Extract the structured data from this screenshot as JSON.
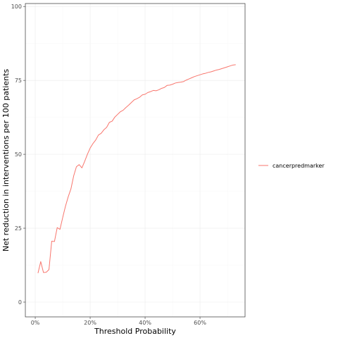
{
  "chart_data": {
    "type": "line",
    "title": "",
    "xlabel": "Threshold Probability",
    "ylabel": "Net reduction in interventions per 100 patients",
    "xlim": [
      -0.036,
      0.764
    ],
    "ylim": [
      -5,
      101
    ],
    "x_ticks": [
      {
        "value": 0.0,
        "label": "0%"
      },
      {
        "value": 0.2,
        "label": "20%"
      },
      {
        "value": 0.4,
        "label": "40%"
      },
      {
        "value": 0.6,
        "label": "60%"
      }
    ],
    "y_ticks": [
      {
        "value": 0,
        "label": "0"
      },
      {
        "value": 25,
        "label": "25"
      },
      {
        "value": 50,
        "label": "50"
      },
      {
        "value": 75,
        "label": "75"
      },
      {
        "value": 100,
        "label": "100"
      }
    ],
    "grid": true,
    "legend_position": "right",
    "series": [
      {
        "name": "cancerpredmarker",
        "color": "#F8766D",
        "x": [
          0.01,
          0.02,
          0.03,
          0.04,
          0.05,
          0.06,
          0.07,
          0.08,
          0.09,
          0.1,
          0.11,
          0.12,
          0.13,
          0.14,
          0.15,
          0.16,
          0.17,
          0.18,
          0.19,
          0.2,
          0.21,
          0.22,
          0.23,
          0.24,
          0.25,
          0.26,
          0.27,
          0.28,
          0.29,
          0.3,
          0.31,
          0.32,
          0.33,
          0.34,
          0.35,
          0.36,
          0.37,
          0.38,
          0.39,
          0.4,
          0.41,
          0.42,
          0.43,
          0.44,
          0.45,
          0.46,
          0.47,
          0.48,
          0.49,
          0.5,
          0.51,
          0.52,
          0.53,
          0.54,
          0.55,
          0.56,
          0.57,
          0.58,
          0.59,
          0.6,
          0.61,
          0.62,
          0.63,
          0.64,
          0.65,
          0.66,
          0.67,
          0.68,
          0.69,
          0.7,
          0.71,
          0.72,
          0.73
        ],
        "values": [
          9.8,
          13.7,
          10.0,
          10.1,
          11.0,
          20.6,
          20.5,
          25.2,
          24.6,
          28.6,
          32.4,
          35.6,
          38.3,
          42.7,
          45.8,
          46.5,
          45.4,
          47.6,
          50.0,
          52.1,
          53.6,
          54.8,
          56.5,
          57.1,
          58.3,
          59.1,
          60.8,
          61.2,
          62.6,
          63.5,
          64.4,
          64.9,
          65.8,
          66.6,
          67.5,
          68.4,
          68.8,
          69.3,
          70.1,
          70.3,
          70.9,
          71.2,
          71.6,
          71.5,
          71.8,
          72.3,
          72.6,
          73.3,
          73.4,
          73.7,
          74.1,
          74.3,
          74.4,
          74.6,
          75.1,
          75.5,
          75.9,
          76.3,
          76.6,
          76.9,
          77.2,
          77.4,
          77.7,
          77.9,
          78.2,
          78.5,
          78.7,
          79.0,
          79.3,
          79.6,
          79.9,
          80.2,
          80.3
        ]
      }
    ]
  }
}
